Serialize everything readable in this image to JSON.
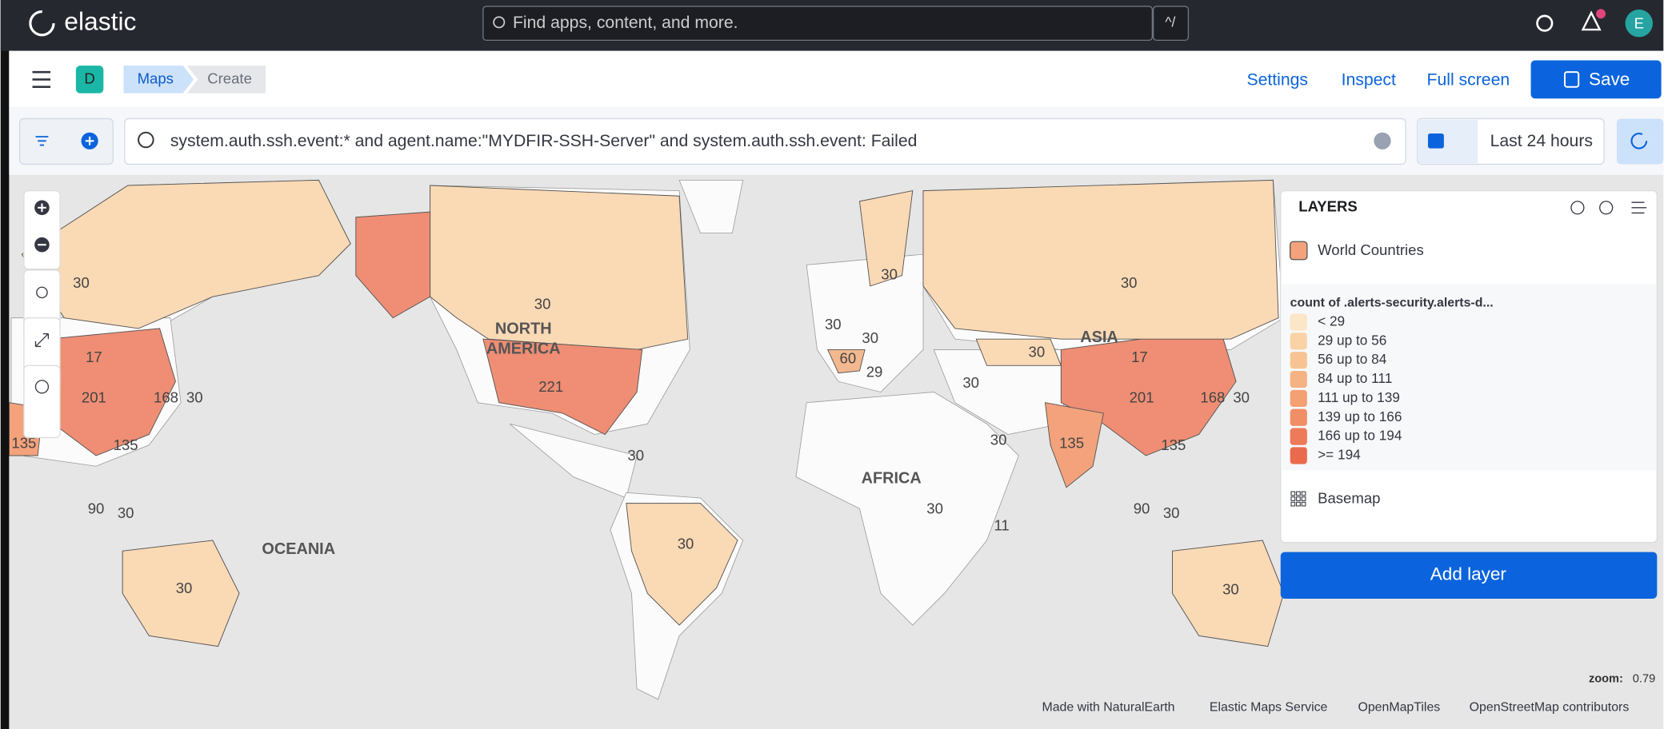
{
  "header": {
    "logo": "elastic",
    "search_placeholder": "Find apps, content, and more.",
    "shortcut": "^/",
    "avatar": "E"
  },
  "nav": {
    "space": "D",
    "breadcrumbs": [
      "Maps",
      "Create"
    ],
    "actions": [
      "Settings",
      "Inspect",
      "Full screen"
    ],
    "save": "Save"
  },
  "query": {
    "text": "system.auth.ssh.event:* and agent.name:\"MYDFIR-SSH-Server\"  and system.auth.ssh.event: Failed",
    "date_range": "Last 24 hours"
  },
  "map": {
    "labels": [
      "30",
      "17",
      "201",
      "168",
      "30",
      "135",
      "135",
      "30",
      "NORTH",
      "AMERICA",
      "221",
      "30",
      "30",
      "30",
      "30",
      "60",
      "29",
      "30",
      "30",
      "AFRICA",
      "30",
      "11",
      "30",
      "30",
      "ASIA",
      "17",
      "201",
      "168",
      "30",
      "135",
      "135",
      "90",
      "30",
      "OCEANIA",
      "30",
      "30",
      "90",
      "30",
      "30"
    ]
  },
  "layers": {
    "title": "LAYERS",
    "layer": "World Countries",
    "legend_title": "count of .alerts-security.alerts-d...",
    "legend": [
      "< 29",
      "29 up to 56",
      "56 up to 84",
      "84 up to 111",
      "111 up to 139",
      "139 up to 166",
      "166 up to 194",
      ">= 194"
    ],
    "basemap": "Basemap",
    "add": "Add layer"
  },
  "zoom": {
    "label": "zoom:",
    "value": "0.79"
  },
  "attribution": [
    "Made with NaturalEarth",
    "Elastic Maps Service",
    "OpenMapTiles",
    "OpenStreetMap contributors"
  ]
}
